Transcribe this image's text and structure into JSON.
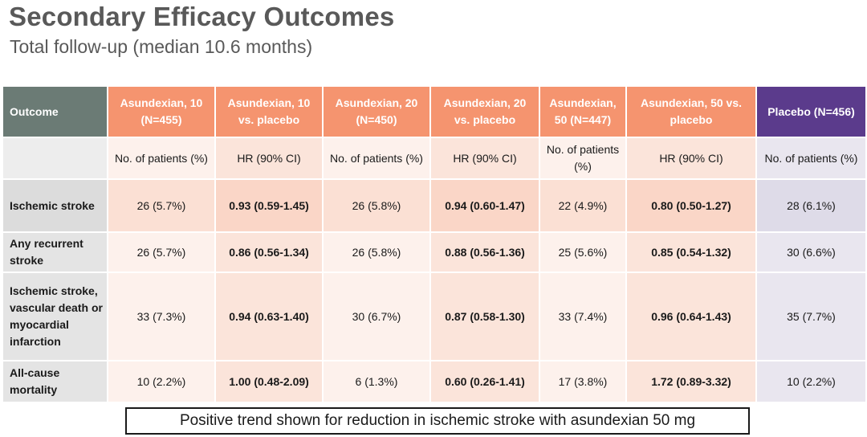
{
  "title": "Secondary Efficacy Outcomes",
  "subtitle": "Total follow-up (median 10.6 months)",
  "table": {
    "headers": [
      "Outcome",
      "Asundexian, 10 (N=455)",
      "Asundexian, 10 vs. placebo",
      "Asundexian, 20 (N=450)",
      "Asundexian, 20 vs. placebo",
      "Asundexian, 50 (N=447)",
      "Asundexian, 50 vs. placebo",
      "Placebo (N=456)"
    ],
    "subheaders": [
      "",
      "No. of patients (%)",
      "HR (90% CI)",
      "No. of patients (%)",
      "HR (90% CI)",
      "No. of patients (%)",
      "HR (90% CI)",
      "No. of patients (%)"
    ],
    "rows": [
      [
        "Ischemic stroke",
        "26 (5.7%)",
        "0.93 (0.59-1.45)",
        "26 (5.8%)",
        "0.94 (0.60-1.47)",
        "22 (4.9%)",
        "0.80 (0.50-1.27)",
        "28 (6.1%)"
      ],
      [
        "Any recurrent stroke",
        "26 (5.7%)",
        "0.86 (0.56-1.34)",
        "26 (5.8%)",
        "0.88 (0.56-1.36)",
        "25 (5.6%)",
        "0.85 (0.54-1.32)",
        "30 (6.6%)"
      ],
      [
        "Ischemic stroke, vascular death or myocardial infarction",
        "33 (7.3%)",
        "0.94 (0.63-1.40)",
        "30 (6.7%)",
        "0.87 (0.58-1.30)",
        "33 (7.4%)",
        "0.96 (0.64-1.43)",
        "35 (7.7%)"
      ],
      [
        "All-cause mortality",
        "10 (2.2%)",
        "1.00 (0.48-2.09)",
        "6 (1.3%)",
        "0.60 (0.26-1.41)",
        "17 (3.8%)",
        "1.72 (0.89-3.32)",
        "10 (2.2%)"
      ]
    ]
  },
  "callout": "Positive trend shown for reduction in ischemic stroke with asundexian 50 mg",
  "colors": {
    "outcome_header": "#6b7b75",
    "drug_header": "#f5946f",
    "placebo_header": "#5b3b8c",
    "highlight_text": "#ea6a5b"
  }
}
